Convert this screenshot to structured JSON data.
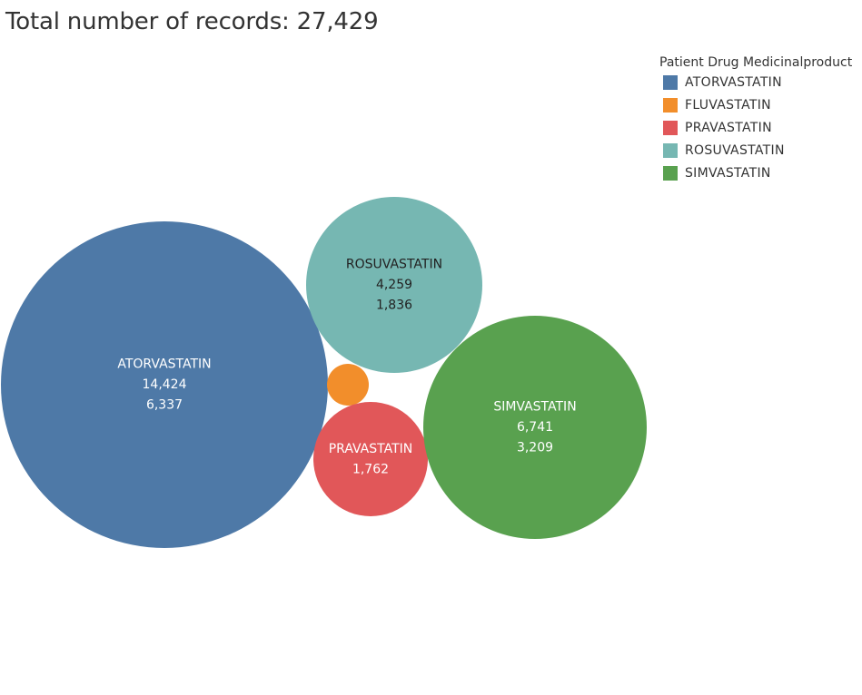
{
  "title": "Total number of records: 27,429",
  "legend": {
    "title": "Patient Drug Medicinalproduct",
    "items": [
      {
        "label": "ATORVASTATIN",
        "color": "#4e79a7"
      },
      {
        "label": "FLUVASTATIN",
        "color": "#f28e2b"
      },
      {
        "label": "PRAVASTATIN",
        "color": "#e15759"
      },
      {
        "label": "ROSUVASTATIN",
        "color": "#76b7b2"
      },
      {
        "label": "SIMVASTATIN",
        "color": "#59a14f"
      }
    ]
  },
  "chart_data": {
    "type": "bubble",
    "title": "Total number of records: 27,429",
    "legend_title": "Patient Drug Medicinalproduct",
    "legend_position": "top-right",
    "bubbles": [
      {
        "name": "ATORVASTATIN",
        "value": 14424,
        "secondary": "6,337",
        "value_label": "14,424",
        "color": "#4e79a7",
        "text_color": "#ffffff"
      },
      {
        "name": "ROSUVASTATIN",
        "value": 4259,
        "secondary": "1,836",
        "value_label": "4,259",
        "color": "#76b7b2",
        "text_color": "#222222"
      },
      {
        "name": "FLUVASTATIN",
        "value": null,
        "secondary": "",
        "value_label": "",
        "color": "#f28e2b",
        "text_color": "#ffffff"
      },
      {
        "name": "PRAVASTATIN",
        "value": 1762,
        "secondary": "",
        "value_label": "1,762",
        "color": "#e15759",
        "text_color": "#ffffff"
      },
      {
        "name": "SIMVASTATIN",
        "value": 6741,
        "secondary": "3,209",
        "value_label": "6,741",
        "color": "#59a14f",
        "text_color": "#ffffff"
      }
    ]
  }
}
